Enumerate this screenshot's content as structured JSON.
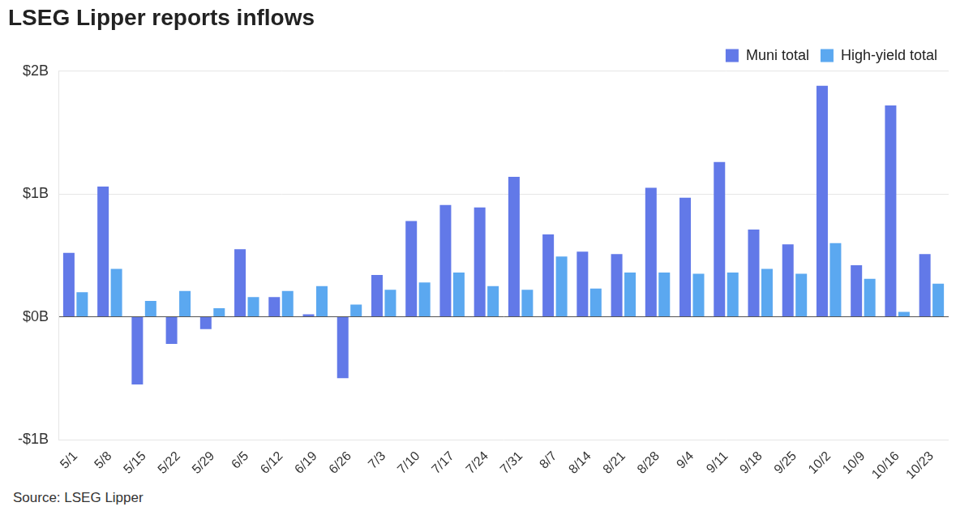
{
  "chart_data": {
    "type": "bar",
    "title": "LSEG Lipper reports inflows",
    "source": "Source: LSEG Lipper",
    "categories": [
      "5/1",
      "5/8",
      "5/15",
      "5/22",
      "5/29",
      "6/5",
      "6/12",
      "6/19",
      "6/26",
      "7/3",
      "7/10",
      "7/17",
      "7/24",
      "7/31",
      "8/7",
      "8/14",
      "8/21",
      "8/28",
      "9/4",
      "9/11",
      "9/18",
      "9/25",
      "10/2",
      "10/9",
      "10/16",
      "10/23"
    ],
    "series": [
      {
        "name": "Muni total",
        "color": "#6279e8",
        "values": [
          0.52,
          1.06,
          -0.55,
          -0.22,
          -0.1,
          0.55,
          0.16,
          0.02,
          -0.5,
          0.34,
          0.78,
          0.91,
          0.89,
          1.14,
          0.67,
          0.53,
          0.51,
          1.05,
          0.97,
          1.26,
          0.71,
          0.59,
          1.88,
          0.42,
          1.72,
          0.51
        ]
      },
      {
        "name": "High-yield total",
        "color": "#5ba8f0",
        "values": [
          0.2,
          0.39,
          0.13,
          0.21,
          0.07,
          0.16,
          0.21,
          0.25,
          0.1,
          0.22,
          0.28,
          0.36,
          0.25,
          0.22,
          0.49,
          0.23,
          0.36,
          0.36,
          0.35,
          0.36,
          0.39,
          0.35,
          0.6,
          0.31,
          0.04,
          0.27
        ]
      }
    ],
    "ylim": [
      -1,
      2
    ],
    "yticks": [
      {
        "value": -1,
        "label": "-$1B"
      },
      {
        "value": 0,
        "label": "$0B"
      },
      {
        "value": 1,
        "label": "$1B"
      },
      {
        "value": 2,
        "label": "$2B"
      }
    ],
    "grid": true,
    "legend": "top-right"
  }
}
